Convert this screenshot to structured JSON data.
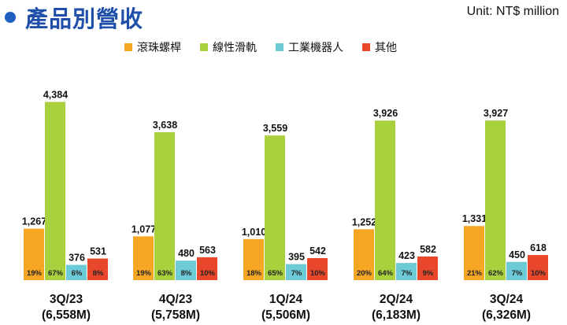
{
  "header": {
    "title": "產品別營收",
    "unit": "Unit:  NT$ million"
  },
  "chart_data": {
    "type": "bar",
    "title": "產品別營收",
    "unit": "Unit:  NT$ million",
    "legend_position": "top",
    "grid": false,
    "ylim": [
      0,
      4800
    ],
    "groups": [
      {
        "label": "3Q/23",
        "total": "(6,558M)"
      },
      {
        "label": "4Q/23",
        "total": "(5,758M)"
      },
      {
        "label": "1Q/24",
        "total": "(5,506M)"
      },
      {
        "label": "2Q/24",
        "total": "(6,183M)"
      },
      {
        "label": "3Q/24",
        "total": "(6,326M)"
      }
    ],
    "series": [
      {
        "name": "滾珠螺桿",
        "color": "#f5a623",
        "values": [
          1267,
          1077,
          1010,
          1252,
          1331
        ],
        "value_labels": [
          "1,267",
          "1,077",
          "1,010",
          "1,252",
          "1,331"
        ],
        "shares": [
          "19%",
          "19%",
          "18%",
          "20%",
          "21%"
        ]
      },
      {
        "name": "線性滑軌",
        "color": "#a8d13d",
        "values": [
          4384,
          3638,
          3559,
          3926,
          3927
        ],
        "value_labels": [
          "4,384",
          "3,638",
          "3,559",
          "3,926",
          "3,927"
        ],
        "shares": [
          "67%",
          "63%",
          "65%",
          "64%",
          "62%"
        ]
      },
      {
        "name": "工業機器人",
        "color": "#6ccbd6",
        "values": [
          376,
          480,
          395,
          423,
          450
        ],
        "value_labels": [
          "376",
          "480",
          "395",
          "423",
          "450"
        ],
        "shares": [
          "6%",
          "8%",
          "7%",
          "7%",
          "7%"
        ]
      },
      {
        "name": "其他",
        "color": "#e8472b",
        "values": [
          531,
          563,
          542,
          582,
          618
        ],
        "value_labels": [
          "531",
          "563",
          "542",
          "582",
          "618"
        ],
        "shares": [
          "8%",
          "10%",
          "10%",
          "9%",
          "10%"
        ]
      }
    ]
  }
}
